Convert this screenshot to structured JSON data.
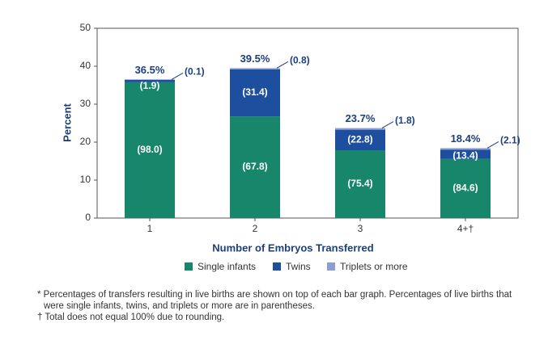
{
  "chart_data": {
    "type": "bar",
    "xlabel": "Number of Embryos Transferred",
    "ylabel": "Percent",
    "categories": [
      "1",
      "2",
      "3",
      "4+†"
    ],
    "values": [
      36.5,
      39.5,
      23.7,
      18.4
    ],
    "value_labels": [
      "36.5%",
      "39.5%",
      "23.7%",
      "18.4%"
    ],
    "series": [
      {
        "name": "Single infants",
        "color": "#17866a",
        "values": [
          98.0,
          67.8,
          75.4,
          84.6
        ],
        "value_labels": [
          "(98.0)",
          "(67.8)",
          "(75.4)",
          "(84.6)"
        ]
      },
      {
        "name": "Twins",
        "color": "#1d4f9e",
        "values": [
          1.9,
          31.4,
          22.8,
          13.4
        ],
        "value_labels": [
          "(1.9)",
          "(31.4)",
          "(22.8)",
          "(13.4)"
        ]
      },
      {
        "name": "Triplets or more",
        "color": "#8c9ed3",
        "values": [
          0.1,
          0.8,
          1.8,
          2.1
        ],
        "value_labels": [
          "(0.1)",
          "(0.8)",
          "(1.8)",
          "(2.1)"
        ]
      }
    ],
    "ylim": [
      0,
      50
    ],
    "yticks": [
      0,
      10,
      20,
      30,
      40,
      50
    ],
    "notes": [
      "* Percentages of transfers resulting in live births are shown on top of each bar graph. Percentages of live births that were single infants, twins, and triplets or more are in parentheses.",
      "† Total does not equal 100% due to rounding."
    ]
  }
}
